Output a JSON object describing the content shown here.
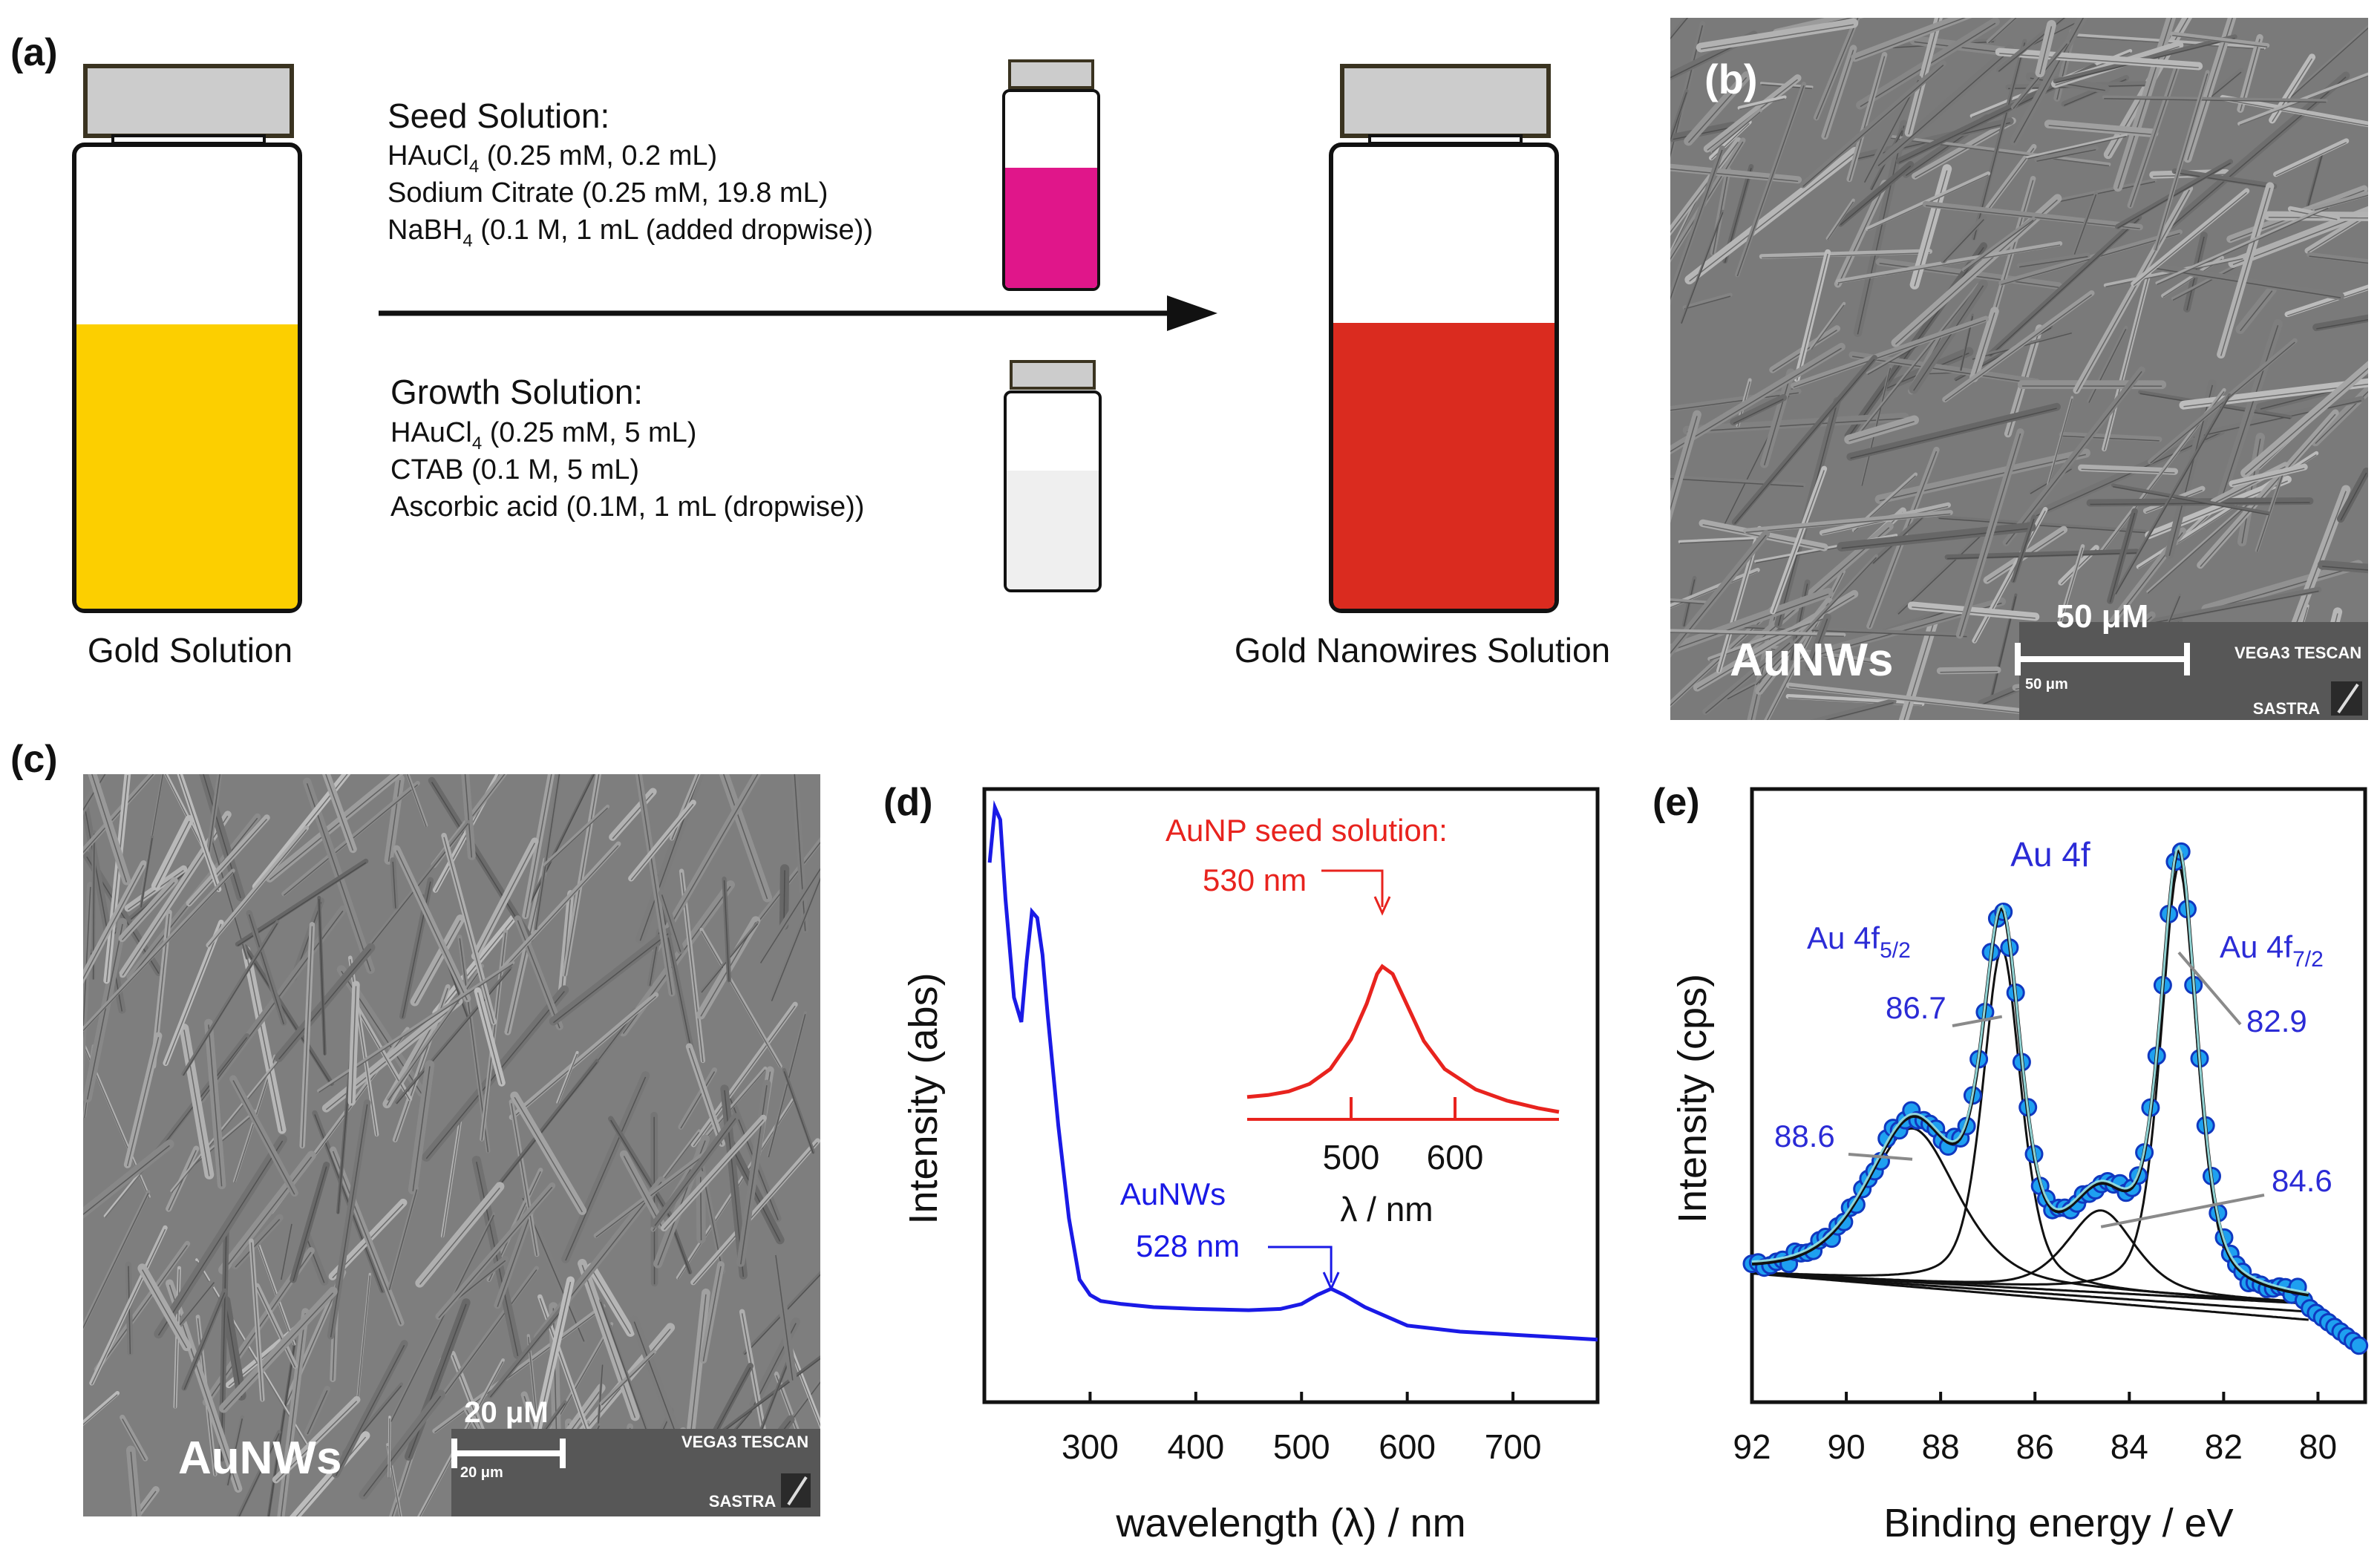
{
  "panel_a": {
    "label": "(a)",
    "left_vial_caption": "Gold Solution",
    "right_vial_caption": "Gold Nanowires Solution",
    "seed": {
      "title": "Seed Solution:",
      "lines": [
        "HAuCl",
        "4",
        " (0.25 mM, 0.2 mL)",
        "Sodium Citrate (0.25 mM, 19.8 mL)",
        "NaBH",
        "4",
        " (0.1 M, 1 mL (added dropwise))"
      ]
    },
    "growth": {
      "title": "Growth Solution:",
      "lines": [
        "HAuCl",
        "4",
        " (0.25 mM, 5 mL)",
        "CTAB (0.1 M, 5 mL)",
        "Ascorbic acid (0.1M, 1 mL (dropwise))"
      ]
    },
    "colors": {
      "gold": "#FCCF00",
      "seed_magenta": "#E0168A",
      "nanowire_red": "#DA2B1F",
      "growth_grey": "#EFEFEF",
      "cap_grey": "#CCCCCC"
    }
  },
  "panel_b": {
    "label": "(b)",
    "sample": "AuNWs",
    "scale_label": "50 μM",
    "scale_small": "50 μm",
    "instrument": "VEGA3 TESCAN",
    "institution": "SASTRA"
  },
  "panel_c": {
    "label": "(c)",
    "sample": "AuNWs",
    "scale_label": "20 μM",
    "scale_small": "20 μm",
    "instrument": "VEGA3 TESCAN",
    "institution": "SASTRA"
  },
  "chart_data": [
    {
      "panel": "(d)",
      "type": "line",
      "xlabel": "wavelength (λ) / nm",
      "ylabel": "Intensity (abs)",
      "xlim": [
        200,
        780
      ],
      "xticks": [
        300,
        400,
        500,
        600,
        700
      ],
      "series": [
        {
          "name": "AuNWs",
          "color": "#1A1AE6",
          "peak_label": "528 nm",
          "x": [
            205,
            210,
            215,
            220,
            228,
            235,
            240,
            245,
            250,
            255,
            260,
            270,
            280,
            290,
            300,
            310,
            330,
            360,
            400,
            450,
            480,
            500,
            515,
            528,
            540,
            560,
            600,
            650,
            700,
            750,
            780
          ],
          "y": [
            0.88,
            0.97,
            0.95,
            0.82,
            0.66,
            0.62,
            0.72,
            0.8,
            0.79,
            0.73,
            0.63,
            0.45,
            0.3,
            0.2,
            0.175,
            0.165,
            0.16,
            0.155,
            0.152,
            0.15,
            0.152,
            0.16,
            0.175,
            0.185,
            0.175,
            0.155,
            0.125,
            0.115,
            0.11,
            0.105,
            0.102
          ]
        }
      ],
      "inset": {
        "title": "AuNP seed solution:",
        "peak_label": "530 nm",
        "xlabel": "λ / nm",
        "xlim": [
          400,
          700
        ],
        "xticks": [
          500,
          600
        ],
        "color": "#E8231E",
        "x": [
          400,
          420,
          440,
          460,
          480,
          500,
          515,
          525,
          530,
          540,
          555,
          570,
          590,
          620,
          650,
          680,
          700
        ],
        "y": [
          0.12,
          0.13,
          0.15,
          0.19,
          0.27,
          0.43,
          0.62,
          0.78,
          0.82,
          0.78,
          0.6,
          0.42,
          0.27,
          0.16,
          0.1,
          0.06,
          0.04
        ]
      }
    },
    {
      "panel": "(e)",
      "type": "line",
      "title": "Au 4f",
      "xlabel": "Binding energy / eV",
      "ylabel": "Intensity  (cps)",
      "xlim": [
        92,
        79
      ],
      "xticks": [
        92,
        90,
        88,
        86,
        84,
        82,
        80
      ],
      "peak_labels": [
        {
          "text": "Au 4f",
          "sub": "5/2"
        },
        {
          "text": "Au 4f",
          "sub": "7/2"
        }
      ],
      "peaks": [
        {
          "label": "88.6",
          "center": 88.6,
          "height": 0.3,
          "width": 1.0
        },
        {
          "label": "86.7",
          "center": 86.7,
          "height": 0.66,
          "width": 0.42
        },
        {
          "label": "84.6",
          "center": 84.6,
          "height": 0.16,
          "width": 0.75
        },
        {
          "label": "82.9",
          "center": 82.95,
          "height": 0.84,
          "width": 0.4
        }
      ],
      "colors": {
        "markers": "#1EA0F0",
        "marker_edge": "#1038C0",
        "fit": "#111111",
        "labels": "#2B2BD6"
      }
    }
  ]
}
